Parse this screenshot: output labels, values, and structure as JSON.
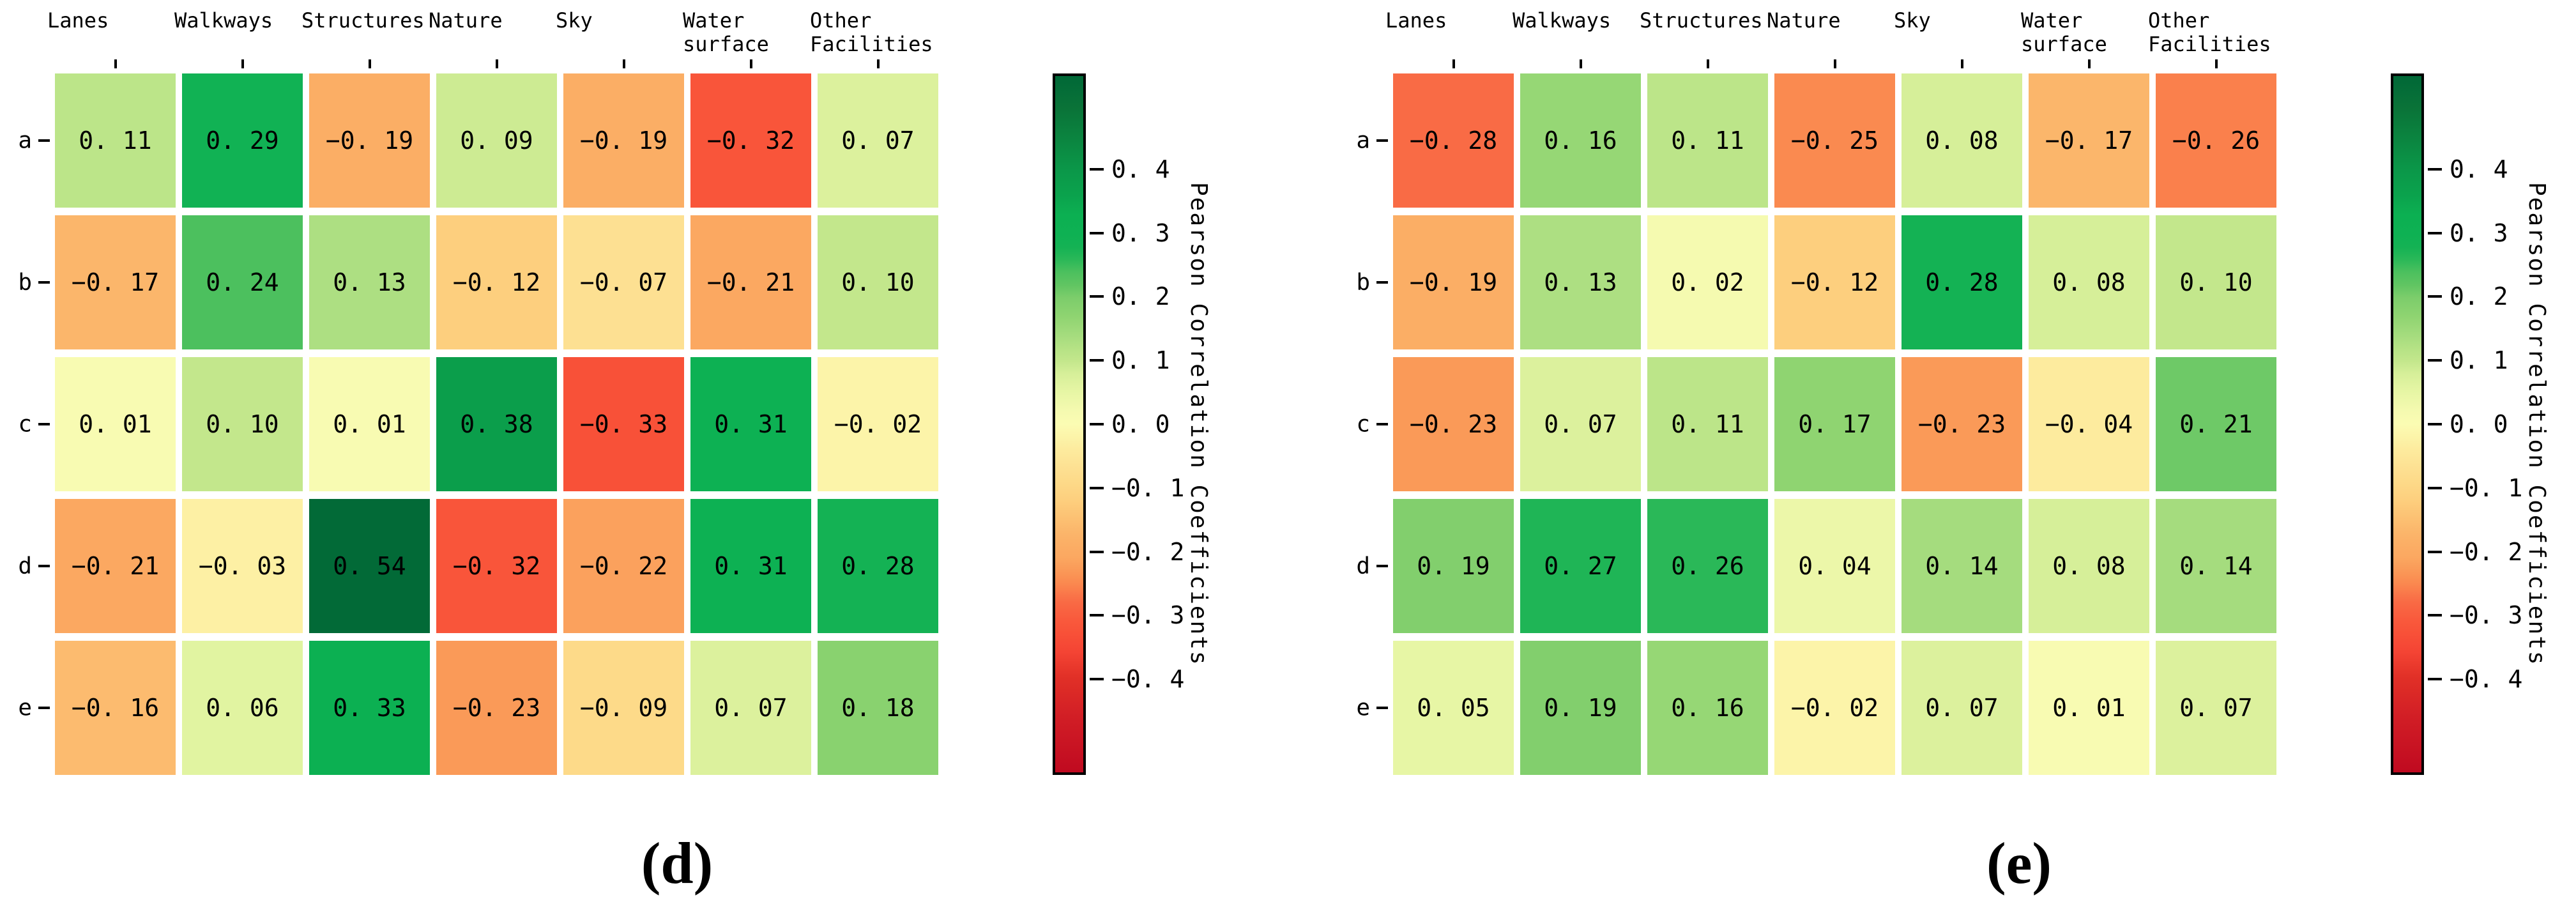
{
  "figure": {
    "background": "#ffffff",
    "text_color": "#000000"
  },
  "colormap": {
    "vmin": -0.55,
    "vmax": 0.55,
    "stops": [
      {
        "v": 0.55,
        "c": "#006837"
      },
      {
        "v": 0.5,
        "c": "#0a7338"
      },
      {
        "v": 0.45,
        "c": "#0b8540"
      },
      {
        "v": 0.4,
        "c": "#0b9849"
      },
      {
        "v": 0.36,
        "c": "#0ba34d"
      },
      {
        "v": 0.33,
        "c": "#0cb052"
      },
      {
        "v": 0.3,
        "c": "#0eb153"
      },
      {
        "v": 0.28,
        "c": "#14b254"
      },
      {
        "v": 0.26,
        "c": "#2ab858"
      },
      {
        "v": 0.24,
        "c": "#4cc05e"
      },
      {
        "v": 0.22,
        "c": "#60c562"
      },
      {
        "v": 0.2,
        "c": "#7ccd6b"
      },
      {
        "v": 0.17,
        "c": "#8fd471"
      },
      {
        "v": 0.14,
        "c": "#a5dc7e"
      },
      {
        "v": 0.12,
        "c": "#b5e285"
      },
      {
        "v": 0.1,
        "c": "#c3e78c"
      },
      {
        "v": 0.08,
        "c": "#d6ef99"
      },
      {
        "v": 0.05,
        "c": "#e7f6a5"
      },
      {
        "v": 0.02,
        "c": "#f5fab0"
      },
      {
        "v": 0.0,
        "c": "#fbfcb3"
      },
      {
        "v": -0.02,
        "c": "#fcf4a9"
      },
      {
        "v": -0.04,
        "c": "#fdeb9e"
      },
      {
        "v": -0.07,
        "c": "#fde092"
      },
      {
        "v": -0.09,
        "c": "#fdda89"
      },
      {
        "v": -0.12,
        "c": "#fdcf7e"
      },
      {
        "v": -0.15,
        "c": "#fcc072"
      },
      {
        "v": -0.17,
        "c": "#fbb66b"
      },
      {
        "v": -0.19,
        "c": "#fbae65"
      },
      {
        "v": -0.21,
        "c": "#fba861"
      },
      {
        "v": -0.23,
        "c": "#fa9a58"
      },
      {
        "v": -0.25,
        "c": "#fa8a50"
      },
      {
        "v": -0.28,
        "c": "#f96b45"
      },
      {
        "v": -0.31,
        "c": "#f9593c"
      },
      {
        "v": -0.33,
        "c": "#f85138"
      },
      {
        "v": -0.36,
        "c": "#f44434"
      },
      {
        "v": -0.4,
        "c": "#e13027"
      },
      {
        "v": -0.47,
        "c": "#d01c25"
      },
      {
        "v": -0.55,
        "c": "#c00a20"
      }
    ]
  },
  "chart_data": [
    {
      "type": "heatmap",
      "panel": "d",
      "caption": "(d)",
      "columns": [
        "Lanes",
        "Walkways",
        "Structures",
        "Nature",
        "Sky",
        "Water\nsurface",
        "Other\nFacilities"
      ],
      "rows": [
        "a",
        "b",
        "c",
        "d",
        "e"
      ],
      "values": [
        [
          0.11,
          0.29,
          -0.19,
          0.09,
          -0.19,
          -0.32,
          0.07
        ],
        [
          -0.17,
          0.24,
          0.13,
          -0.12,
          -0.07,
          -0.21,
          0.1
        ],
        [
          0.01,
          0.1,
          0.01,
          0.38,
          -0.33,
          0.31,
          -0.02
        ],
        [
          -0.21,
          -0.03,
          0.54,
          -0.32,
          -0.22,
          0.31,
          0.28
        ],
        [
          -0.16,
          0.06,
          0.33,
          -0.23,
          -0.09,
          0.07,
          0.18
        ]
      ],
      "colorbar": {
        "label": "Pearson Correlation Coefficients",
        "ticks": [
          0.4,
          0.3,
          0.2,
          0.1,
          0.0,
          -0.1,
          -0.2,
          -0.3,
          -0.4
        ]
      }
    },
    {
      "type": "heatmap",
      "panel": "e",
      "caption": "(e)",
      "columns": [
        "Lanes",
        "Walkways",
        "Structures",
        "Nature",
        "Sky",
        "Water\nsurface",
        "Other\nFacilities"
      ],
      "rows": [
        "a",
        "b",
        "c",
        "d",
        "e"
      ],
      "values": [
        [
          -0.28,
          0.16,
          0.11,
          -0.25,
          0.08,
          -0.17,
          -0.26
        ],
        [
          -0.19,
          0.13,
          0.02,
          -0.12,
          0.28,
          0.08,
          0.1
        ],
        [
          -0.23,
          0.07,
          0.11,
          0.17,
          -0.23,
          -0.04,
          0.21
        ],
        [
          0.19,
          0.27,
          0.26,
          0.04,
          0.14,
          0.08,
          0.14
        ],
        [
          0.05,
          0.19,
          0.16,
          -0.02,
          0.07,
          0.01,
          0.07
        ]
      ],
      "colorbar": {
        "label": "Pearson Correlation Coefficients",
        "ticks": [
          0.4,
          0.3,
          0.2,
          0.1,
          0.0,
          -0.1,
          -0.2,
          -0.3,
          -0.4
        ]
      }
    }
  ]
}
